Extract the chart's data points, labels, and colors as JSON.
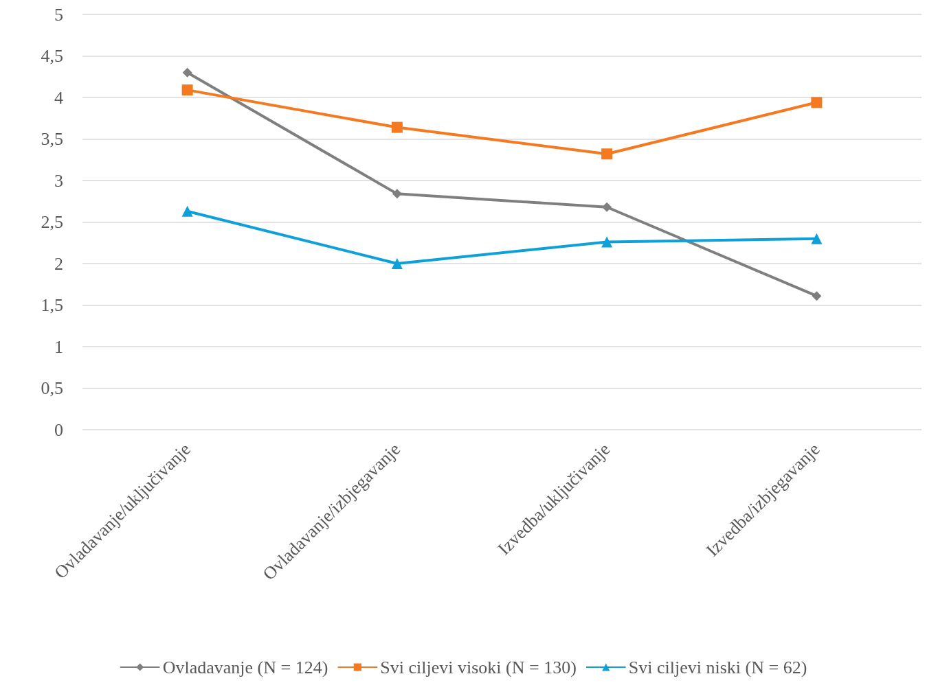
{
  "chart_data": {
    "type": "line",
    "categories": [
      "Ovladavanje/uključivanje",
      "Ovladavanje/izbjegavanje",
      "Izvedba/uključivanje",
      "Izvedba/izbjegavanje"
    ],
    "series": [
      {
        "name": "Ovladavanje (N = 124)",
        "color": "#7f7f7f",
        "marker": "diamond",
        "values": [
          4.3,
          2.84,
          2.68,
          1.61
        ]
      },
      {
        "name": "Svi ciljevi visoki (N = 130)",
        "color": "#f47920",
        "marker": "square",
        "values": [
          4.09,
          3.64,
          3.32,
          3.94
        ]
      },
      {
        "name": "Svi ciljevi niski (N = 62)",
        "color": "#0ea0d8",
        "marker": "triangle",
        "values": [
          2.63,
          2.0,
          2.26,
          2.3
        ]
      }
    ],
    "ylim": [
      0,
      5
    ],
    "yticks": [
      0,
      {
        "value": 0.5,
        "label": "0,5"
      },
      1,
      {
        "value": 1.5,
        "label": "1,5"
      },
      2,
      {
        "value": 2.5,
        "label": "2,5"
      },
      3,
      {
        "value": 3.5,
        "label": "3,5"
      },
      4,
      {
        "value": 4.5,
        "label": "4,5"
      },
      5
    ],
    "grid": "y",
    "legend": "bottom",
    "line_style": "solid"
  }
}
